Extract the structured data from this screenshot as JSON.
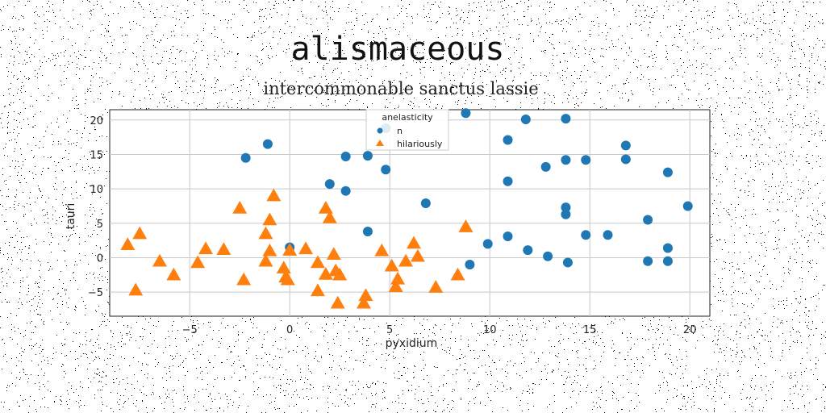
{
  "chart_data": {
    "type": "scatter",
    "title": "alismaceous",
    "subtitle": "intercommonable sanctus lassie",
    "xlabel": "pyxidium",
    "ylabel": "tauri",
    "xlim": [
      -9,
      21
    ],
    "ylim": [
      -8.5,
      21.5
    ],
    "xticks": [
      -5,
      0,
      5,
      10,
      15,
      20
    ],
    "yticks": [
      -5,
      0,
      5,
      10,
      15,
      20
    ],
    "grid": true,
    "legend": {
      "title": "anelasticity",
      "placement": "top-center"
    },
    "colors": {
      "n": "#1f77b4",
      "hilariously": "#ff7f0e"
    },
    "series": [
      {
        "name": "n",
        "marker": "circle",
        "points": [
          [
            -2.2,
            14.5
          ],
          [
            -1.1,
            16.5
          ],
          [
            2.0,
            10.7
          ],
          [
            2.8,
            9.7
          ],
          [
            2.8,
            14.7
          ],
          [
            3.9,
            14.8
          ],
          [
            4.8,
            18.8
          ],
          [
            4.8,
            12.8
          ],
          [
            3.9,
            3.8
          ],
          [
            6.8,
            7.9
          ],
          [
            8.8,
            21.0
          ],
          [
            11.8,
            20.1
          ],
          [
            13.8,
            20.2
          ],
          [
            10.9,
            17.1
          ],
          [
            10.9,
            11.1
          ],
          [
            12.8,
            13.2
          ],
          [
            13.8,
            14.2
          ],
          [
            14.8,
            14.2
          ],
          [
            16.8,
            16.3
          ],
          [
            16.8,
            14.3
          ],
          [
            18.9,
            12.4
          ],
          [
            19.9,
            7.5
          ],
          [
            13.8,
            7.3
          ],
          [
            13.8,
            6.3
          ],
          [
            17.9,
            5.5
          ],
          [
            9.9,
            2.0
          ],
          [
            10.9,
            3.1
          ],
          [
            11.9,
            1.1
          ],
          [
            12.9,
            0.2
          ],
          [
            14.8,
            3.3
          ],
          [
            15.9,
            3.3
          ],
          [
            13.9,
            -0.7
          ],
          [
            9.0,
            -1.0
          ],
          [
            17.9,
            -0.5
          ],
          [
            18.9,
            -0.5
          ],
          [
            18.9,
            1.4
          ],
          [
            0.0,
            1.5
          ]
        ]
      },
      {
        "name": "hilariously",
        "marker": "triangle",
        "points": [
          [
            -8.1,
            1.9
          ],
          [
            -7.5,
            3.5
          ],
          [
            -6.5,
            -0.5
          ],
          [
            -5.8,
            -2.5
          ],
          [
            -4.6,
            -0.7
          ],
          [
            -4.2,
            1.3
          ],
          [
            -3.3,
            1.2
          ],
          [
            -2.3,
            -3.2
          ],
          [
            -2.5,
            7.2
          ],
          [
            -1.2,
            3.5
          ],
          [
            -1.0,
            5.5
          ],
          [
            -0.8,
            9.0
          ],
          [
            -1.0,
            1.0
          ],
          [
            -1.2,
            -0.5
          ],
          [
            -0.3,
            -1.5
          ],
          [
            -0.2,
            -2.8
          ],
          [
            -0.1,
            -3.2
          ],
          [
            0.0,
            1.1
          ],
          [
            0.8,
            1.3
          ],
          [
            1.4,
            -0.7
          ],
          [
            1.4,
            -4.8
          ],
          [
            1.8,
            7.2
          ],
          [
            2.0,
            5.8
          ],
          [
            1.8,
            -2.4
          ],
          [
            2.2,
            0.5
          ],
          [
            2.3,
            -1.9
          ],
          [
            2.5,
            -2.5
          ],
          [
            2.4,
            -6.6
          ],
          [
            3.8,
            -5.5
          ],
          [
            3.7,
            -6.6
          ],
          [
            4.6,
            1.0
          ],
          [
            5.1,
            -1.2
          ],
          [
            5.3,
            -4.2
          ],
          [
            5.4,
            -3.1
          ],
          [
            5.8,
            -0.5
          ],
          [
            6.2,
            2.1
          ],
          [
            6.4,
            0.2
          ],
          [
            7.3,
            -4.3
          ],
          [
            8.4,
            -2.5
          ],
          [
            8.8,
            4.5
          ],
          [
            -7.7,
            -4.7
          ]
        ]
      }
    ]
  }
}
